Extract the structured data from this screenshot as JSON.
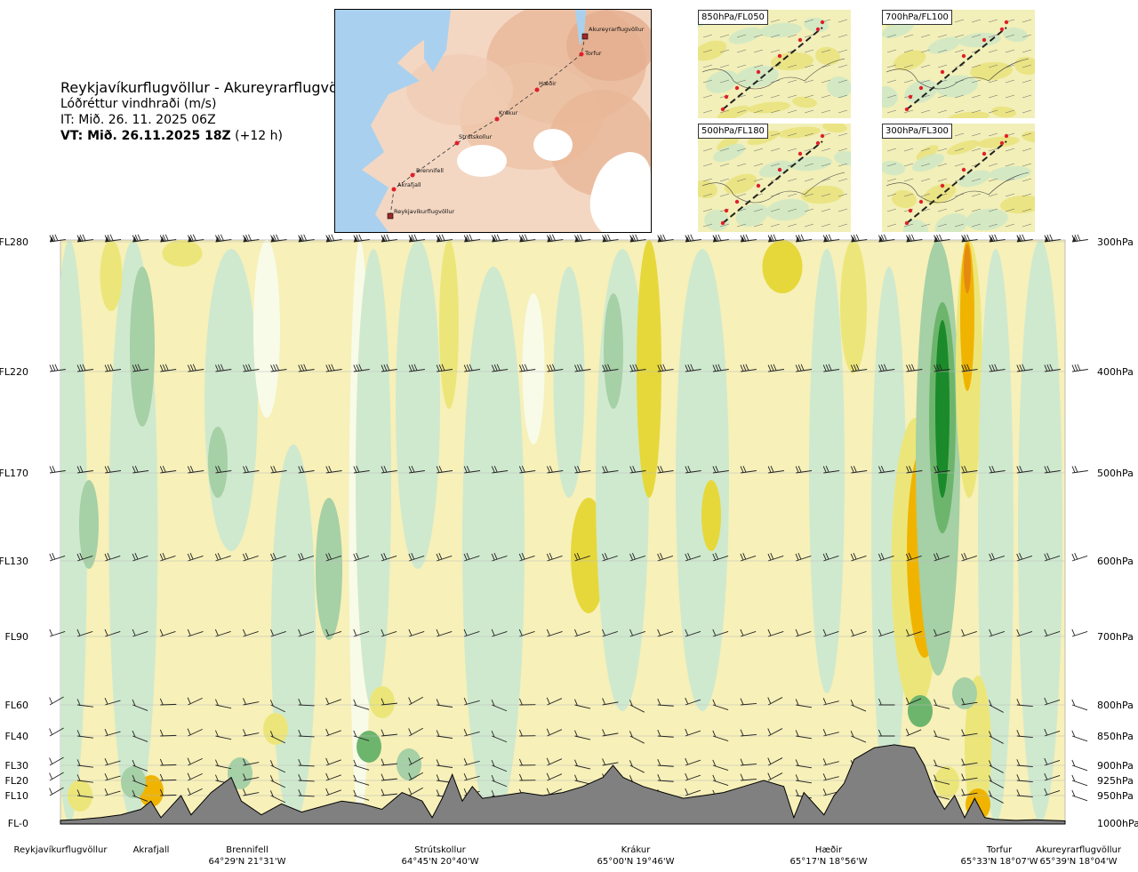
{
  "header": {
    "route": "Reykjavíkurflugvöllur - Akureyrarflugvöllur",
    "variable": "Lóðréttur vindhraði (m/s)",
    "issue_time": "IT: Mið. 26. 11. 2025 06Z",
    "valid_time_bold": "VT: Mið. 26.11.2025 18Z",
    "valid_time_offset": "(+12 h)"
  },
  "route_map": {
    "points": [
      {
        "name": "Reykjavíkurflugvöllur"
      },
      {
        "name": "Akrafjall"
      },
      {
        "name": "Brennifell"
      },
      {
        "name": "Strútskollur"
      },
      {
        "name": "Krákur"
      },
      {
        "name": "Hæðir"
      },
      {
        "name": "Torfur"
      },
      {
        "name": "Akureyrarflugvöllur"
      }
    ]
  },
  "level_maps": [
    {
      "label": "850hPa/FL050"
    },
    {
      "label": "700hPa/FL100"
    },
    {
      "label": "500hPa/FL180"
    },
    {
      "label": "300hPa/FL300"
    }
  ],
  "colors": {
    "sink_strong": "#1a8a2a",
    "sink_mod": "#6db56d",
    "sink_weak": "#a6d0a6",
    "sink_faint": "#cfe9cf",
    "neutral": "#f8fbe8",
    "rise_faint": "#f7f0b8",
    "rise_weak": "#ece67a",
    "rise_mod": "#e6d83a",
    "rise_strong": "#f0b400",
    "rise_max": "#e58a10",
    "terrain": "#808080"
  },
  "chart_data": {
    "type": "heatmap",
    "title": "Lóðréttur vindhraði (m/s)",
    "left_axis": [
      {
        "label": "FL280",
        "hpa": 300
      },
      {
        "label": "FL220",
        "hpa": 400
      },
      {
        "label": "FL170",
        "hpa": 500
      },
      {
        "label": "FL130",
        "hpa": 600
      },
      {
        "label": "FL90",
        "hpa": 700
      },
      {
        "label": "FL60",
        "hpa": 800
      },
      {
        "label": "FL40",
        "hpa": 850
      },
      {
        "label": "FL30",
        "hpa": 900
      },
      {
        "label": "FL20",
        "hpa": 925
      },
      {
        "label": "FL10",
        "hpa": 950
      },
      {
        "label": "FL-0",
        "hpa": 1000
      }
    ],
    "right_axis": [
      "300hPa",
      "400hPa",
      "500hPa",
      "600hPa",
      "700hPa",
      "800hPa",
      "850hPa",
      "900hPa",
      "925hPa",
      "950hPa",
      "1000hPa"
    ],
    "ylim_hpa": [
      1000,
      300
    ],
    "x_locations": [
      {
        "name": "Reykjavíkurflugvöllur",
        "coord": "",
        "frac": 0.0
      },
      {
        "name": "Akrafjall",
        "coord": "",
        "frac": 0.09
      },
      {
        "name": "Brennifell",
        "coord": "64°29'N 21°31'W",
        "frac": 0.19
      },
      {
        "name": "Strútskollur",
        "coord": "64°45'N 20°40'W",
        "frac": 0.38
      },
      {
        "name": "Krákur",
        "coord": "65°00'N 19°46'W",
        "frac": 0.57
      },
      {
        "name": "Hæðir",
        "coord": "65°17'N 18°56'W",
        "frac": 0.76
      },
      {
        "name": "Torfur",
        "coord": "65°33'N 18°07'W",
        "frac": 0.94
      },
      {
        "name": "Akureyrarflugvöllur",
        "coord": "65°39'N 18°04'W",
        "frac": 1.0
      }
    ],
    "terrain_hpa": [
      [
        0.0,
        995
      ],
      [
        0.02,
        993
      ],
      [
        0.04,
        990
      ],
      [
        0.06,
        985
      ],
      [
        0.08,
        975
      ],
      [
        0.09,
        960
      ],
      [
        0.1,
        990
      ],
      [
        0.11,
        970
      ],
      [
        0.12,
        950
      ],
      [
        0.13,
        985
      ],
      [
        0.15,
        945
      ],
      [
        0.17,
        920
      ],
      [
        0.18,
        960
      ],
      [
        0.2,
        985
      ],
      [
        0.22,
        965
      ],
      [
        0.24,
        980
      ],
      [
        0.26,
        970
      ],
      [
        0.28,
        960
      ],
      [
        0.3,
        965
      ],
      [
        0.32,
        975
      ],
      [
        0.34,
        945
      ],
      [
        0.36,
        960
      ],
      [
        0.37,
        990
      ],
      [
        0.38,
        955
      ],
      [
        0.39,
        915
      ],
      [
        0.4,
        960
      ],
      [
        0.41,
        935
      ],
      [
        0.42,
        955
      ],
      [
        0.44,
        950
      ],
      [
        0.46,
        945
      ],
      [
        0.48,
        950
      ],
      [
        0.5,
        945
      ],
      [
        0.52,
        935
      ],
      [
        0.54,
        920
      ],
      [
        0.55,
        900
      ],
      [
        0.56,
        920
      ],
      [
        0.58,
        935
      ],
      [
        0.6,
        945
      ],
      [
        0.62,
        955
      ],
      [
        0.64,
        950
      ],
      [
        0.66,
        945
      ],
      [
        0.68,
        935
      ],
      [
        0.7,
        925
      ],
      [
        0.72,
        935
      ],
      [
        0.73,
        990
      ],
      [
        0.74,
        945
      ],
      [
        0.76,
        985
      ],
      [
        0.77,
        950
      ],
      [
        0.78,
        930
      ],
      [
        0.79,
        890
      ],
      [
        0.81,
        870
      ],
      [
        0.83,
        865
      ],
      [
        0.85,
        870
      ],
      [
        0.86,
        900
      ],
      [
        0.87,
        945
      ],
      [
        0.88,
        975
      ],
      [
        0.89,
        950
      ],
      [
        0.9,
        990
      ],
      [
        0.91,
        955
      ],
      [
        0.92,
        990
      ],
      [
        0.93,
        993
      ],
      [
        0.95,
        995
      ],
      [
        0.97,
        994
      ],
      [
        1.0,
        996
      ]
    ],
    "legend": "none",
    "grid": "horizontal at pressure levels"
  }
}
